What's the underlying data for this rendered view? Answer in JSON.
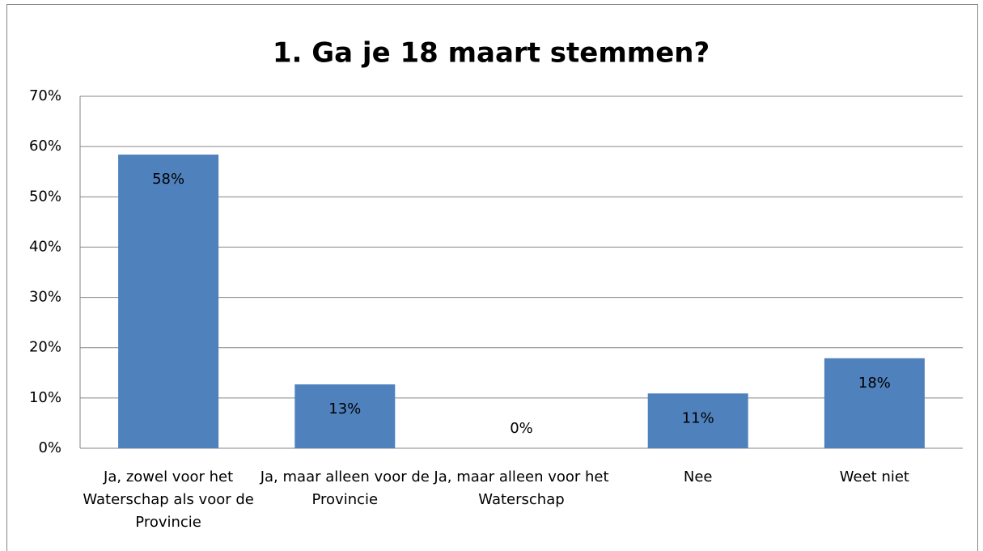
{
  "chart_data": {
    "type": "bar",
    "title": "1. Ga je  18 maart stemmen?",
    "categories": [
      "Ja, zowel voor het Waterschap als voor de Provincie",
      "Ja, maar alleen voor de Provincie",
      "Ja, maar alleen voor het Waterschap",
      "Nee",
      "Weet niet"
    ],
    "values": [
      58.4,
      12.7,
      0,
      10.9,
      17.9
    ],
    "value_labels": [
      "58%",
      "13%",
      "0%",
      "11%",
      "18%"
    ],
    "color": "#4f81bd",
    "ylim": [
      0,
      70
    ],
    "yticks": [
      {
        "value": 0,
        "label": "0%"
      },
      {
        "value": 10,
        "label": "10%"
      },
      {
        "value": 20,
        "label": "20%"
      },
      {
        "value": 30,
        "label": "30%"
      },
      {
        "value": 40,
        "label": "40%"
      },
      {
        "value": 50,
        "label": "50%"
      },
      {
        "value": 60,
        "label": "60%"
      },
      {
        "value": 70,
        "label": "70%"
      }
    ],
    "grid": true
  }
}
